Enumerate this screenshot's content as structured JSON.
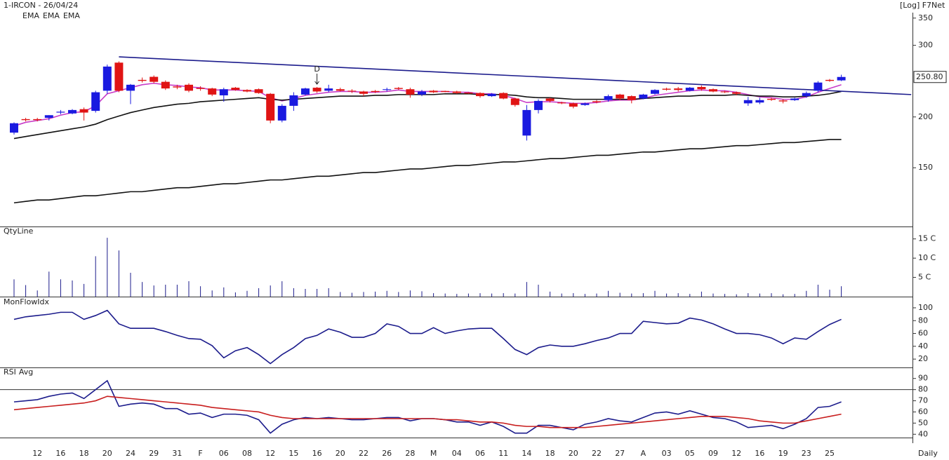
{
  "chart_data": [
    {
      "type": "candlestick",
      "title": "1-IRCON - 26/04/24",
      "scale_label": "[Log] F7Net",
      "xlabel": "Daily",
      "log": true,
      "up_color": "#1a1ae0",
      "down_color": "#e01414",
      "categories": [
        null,
        null,
        "12",
        null,
        "16",
        null,
        "18",
        null,
        "20",
        null,
        "24",
        null,
        "29",
        null,
        "31",
        null,
        "F",
        null,
        "06",
        null,
        "08",
        null,
        "12",
        null,
        "15",
        null,
        "16",
        null,
        "20",
        null,
        "22",
        null,
        "26",
        null,
        "28",
        null,
        "M",
        null,
        "04",
        null,
        "06",
        null,
        "11",
        null,
        "14",
        null,
        "18",
        null,
        "20",
        null,
        "22",
        null,
        "27",
        null,
        "A",
        null,
        "03",
        null,
        "05",
        null,
        "09",
        null,
        "12",
        null,
        "16",
        null,
        "19",
        null,
        "23",
        null,
        "25",
        null
      ],
      "open": [
        183,
        197,
        197,
        199,
        205,
        204,
        209,
        207,
        232,
        272,
        232,
        246,
        251,
        244,
        237,
        240,
        235,
        235,
        226,
        236,
        233,
        234,
        228,
        196,
        213,
        227,
        236,
        232,
        234,
        232,
        231,
        231,
        233,
        235,
        234,
        227,
        232,
        231,
        231,
        229,
        229,
        225,
        229,
        222,
        180,
        208,
        222,
        217,
        216,
        214,
        218,
        220,
        227,
        225,
        222,
        228,
        234,
        235,
        232,
        237,
        234,
        231,
        230,
        216,
        217,
        221,
        219,
        220,
        225,
        232,
        246,
        246
      ],
      "high": [
        194,
        199,
        199,
        202,
        208,
        209,
        211,
        232,
        269,
        274,
        241,
        250,
        253,
        246,
        240,
        242,
        238,
        236,
        236,
        237,
        234,
        235,
        229,
        215,
        230,
        236,
        237,
        240,
        236,
        234,
        232,
        233,
        236,
        237,
        236,
        233,
        233,
        232,
        232,
        230,
        230,
        229,
        230,
        223,
        214,
        221,
        223,
        218,
        217,
        217,
        220,
        227,
        228,
        226,
        228,
        234,
        236,
        237,
        237,
        239,
        235,
        232,
        231,
        224,
        223,
        223,
        221,
        223,
        231,
        245,
        248,
        254
      ],
      "low": [
        181,
        195,
        195,
        196,
        203,
        203,
        196,
        205,
        228,
        230,
        215,
        243,
        242,
        233,
        234,
        230,
        232,
        225,
        218,
        232,
        230,
        228,
        193,
        194,
        207,
        226,
        229,
        230,
        231,
        229,
        225,
        229,
        231,
        233,
        223,
        225,
        229,
        230,
        228,
        228,
        223,
        224,
        221,
        212,
        175,
        204,
        217,
        215,
        210,
        213,
        216,
        218,
        220,
        216,
        221,
        227,
        232,
        231,
        231,
        232,
        230,
        229,
        226,
        213,
        215,
        219,
        216,
        219,
        223,
        230,
        244,
        245
      ],
      "close": [
        193,
        197,
        197,
        202,
        206,
        208,
        205,
        230,
        266,
        232,
        240,
        246,
        244,
        235,
        237,
        232,
        235,
        227,
        234,
        233,
        231,
        229,
        196,
        213,
        226,
        235,
        231,
        235,
        232,
        231,
        228,
        231,
        234,
        235,
        227,
        231,
        230,
        231,
        229,
        229,
        225,
        228,
        222,
        214,
        208,
        219,
        219,
        216,
        212,
        216,
        218,
        225,
        222,
        220,
        227,
        233,
        234,
        233,
        236,
        234,
        231,
        230,
        228,
        220,
        220,
        221,
        219,
        222,
        229,
        243,
        246,
        250.8
      ],
      "close_label": "250.80",
      "series": [
        {
          "name": "EMA",
          "color": "#c83cc8",
          "values": [
            190,
            194,
            196,
            198,
            202,
            205,
            206,
            213,
            228,
            232,
            236,
            240,
            242,
            240,
            239,
            237,
            236,
            233,
            233,
            233,
            232,
            231,
            223,
            219,
            222,
            226,
            228,
            230,
            231,
            231,
            230,
            230,
            231,
            233,
            231,
            231,
            231,
            231,
            230,
            230,
            228,
            228,
            226,
            222,
            217,
            218,
            218,
            217,
            216,
            216,
            217,
            219,
            220,
            220,
            222,
            226,
            228,
            230,
            232,
            233,
            232,
            232,
            230,
            227,
            224,
            223,
            221,
            221,
            224,
            230,
            235,
            240
          ]
        },
        {
          "name": "EMA",
          "color": "#111111",
          "values": [
            177,
            179,
            181,
            183,
            185,
            187,
            189,
            192,
            197,
            201,
            205,
            208,
            211,
            213,
            215,
            216,
            218,
            219,
            220,
            221,
            222,
            223,
            221,
            220,
            221,
            222,
            223,
            224,
            225,
            225,
            225,
            226,
            226,
            227,
            227,
            227,
            227,
            228,
            228,
            228,
            227,
            227,
            227,
            226,
            224,
            223,
            223,
            222,
            221,
            221,
            221,
            221,
            221,
            221,
            222,
            223,
            224,
            225,
            225,
            226,
            226,
            226,
            227,
            226,
            225,
            225,
            224,
            224,
            225,
            226,
            228,
            231
          ]
        },
        {
          "name": "EMA",
          "color": "#111111",
          "values": [
            123,
            124,
            125,
            125,
            126,
            127,
            128,
            128,
            129,
            130,
            131,
            131,
            132,
            133,
            134,
            134,
            135,
            136,
            137,
            137,
            138,
            139,
            140,
            140,
            141,
            142,
            143,
            143,
            144,
            145,
            146,
            146,
            147,
            148,
            149,
            149,
            150,
            151,
            152,
            152,
            153,
            154,
            155,
            155,
            156,
            157,
            158,
            158,
            159,
            160,
            161,
            161,
            162,
            163,
            164,
            164,
            165,
            166,
            167,
            167,
            168,
            169,
            170,
            170,
            171,
            172,
            173,
            173,
            174,
            175,
            176,
            176
          ]
        }
      ],
      "trendline": {
        "x": [
          9,
          77
        ],
        "values": [
          281,
          227
        ],
        "color": "#1c1c8c"
      },
      "annotations": [
        {
          "index": 26,
          "text": "D"
        }
      ],
      "ylim": [
        108,
        361
      ],
      "yticks": [
        150,
        200,
        300,
        350
      ]
    },
    {
      "type": "bar",
      "title": "QtyLine",
      "color": "#1c1c8c",
      "values": [
        4.5,
        3,
        1.6,
        6.5,
        4.5,
        4.2,
        3.3,
        10.5,
        15.3,
        12,
        6.2,
        3.8,
        2.9,
        3.1,
        3.1,
        4,
        2.7,
        1.6,
        2.4,
        1.1,
        1.5,
        2.2,
        2.9,
        4,
        2.2,
        2,
        2,
        2.2,
        1.2,
        1,
        1.2,
        1.3,
        1.5,
        1.2,
        1.6,
        1.4,
        0.9,
        0.8,
        0.7,
        0.8,
        0.9,
        0.8,
        0.9,
        0.8,
        3.8,
        3.1,
        1.3,
        0.8,
        0.9,
        0.7,
        0.8,
        1.5,
        1,
        0.8,
        0.9,
        1.5,
        0.8,
        0.9,
        0.7,
        1.3,
        0.8,
        0.7,
        0.6,
        0.9,
        0.8,
        0.9,
        0.6,
        0.7,
        1.5,
        3.1,
        1.8,
        2.7
      ],
      "ylim": [
        0,
        17.5
      ],
      "yticks": [
        {
          "value": 5,
          "label": "5 C"
        },
        {
          "value": 10,
          "label": "10 C"
        },
        {
          "value": 15,
          "label": "15 C"
        }
      ]
    },
    {
      "type": "line",
      "title": "MonFlowIdx",
      "color": "#1c1c8c",
      "values": [
        82,
        86,
        88,
        90,
        93,
        93,
        82,
        88,
        96,
        75,
        68,
        68,
        68,
        63,
        57,
        52,
        51,
        41,
        22,
        33,
        38,
        27,
        13,
        27,
        38,
        52,
        57,
        67,
        62,
        54,
        54,
        60,
        75,
        71,
        60,
        60,
        69,
        60,
        64,
        67,
        68,
        68,
        52,
        35,
        27,
        38,
        42,
        40,
        40,
        44,
        49,
        53,
        60,
        60,
        79,
        77,
        75,
        76,
        84,
        81,
        75,
        67,
        60,
        60,
        58,
        53,
        44,
        53,
        51,
        63,
        74,
        82
      ],
      "ylim": [
        7,
        112
      ],
      "yticks": [
        20,
        40,
        60,
        80,
        100
      ]
    },
    {
      "type": "line",
      "series": [
        {
          "name": "RSI",
          "color": "#1c1c8c",
          "values": [
            69,
            70,
            71,
            74,
            76,
            77,
            72,
            80,
            88,
            65,
            67,
            68,
            67,
            63,
            63,
            58,
            59,
            55,
            58,
            58,
            57,
            53,
            41,
            49,
            53,
            55,
            54,
            55,
            54,
            53,
            53,
            54,
            55,
            55,
            52,
            54,
            54,
            53,
            51,
            51,
            48,
            51,
            47,
            41,
            41,
            48,
            48,
            46,
            44,
            49,
            51,
            54,
            52,
            51,
            55,
            59,
            60,
            58,
            61,
            58,
            55,
            54,
            51,
            46,
            47,
            48,
            45,
            49,
            54,
            64,
            65,
            69
          ]
        },
        {
          "name": "Avg",
          "color": "#c81e1e",
          "values": [
            62,
            63,
            64,
            65,
            66,
            67,
            68,
            70,
            74,
            73,
            72,
            71,
            70,
            69,
            68,
            67,
            66,
            64,
            63,
            62,
            61,
            60,
            57,
            55,
            54,
            54,
            54,
            54,
            54,
            54,
            54,
            54,
            54,
            54,
            54,
            54,
            54,
            53,
            53,
            52,
            51,
            51,
            50,
            48,
            47,
            47,
            46,
            46,
            46,
            46,
            47,
            48,
            49,
            50,
            51,
            52,
            53,
            54,
            55,
            56,
            56,
            56,
            55,
            54,
            52,
            51,
            50,
            50,
            52,
            54,
            56,
            58
          ]
        }
      ],
      "ref_lines": [
        80
      ],
      "ylim": [
        32,
        98
      ],
      "yticks": [
        40,
        50,
        60,
        70,
        80,
        90
      ]
    }
  ]
}
